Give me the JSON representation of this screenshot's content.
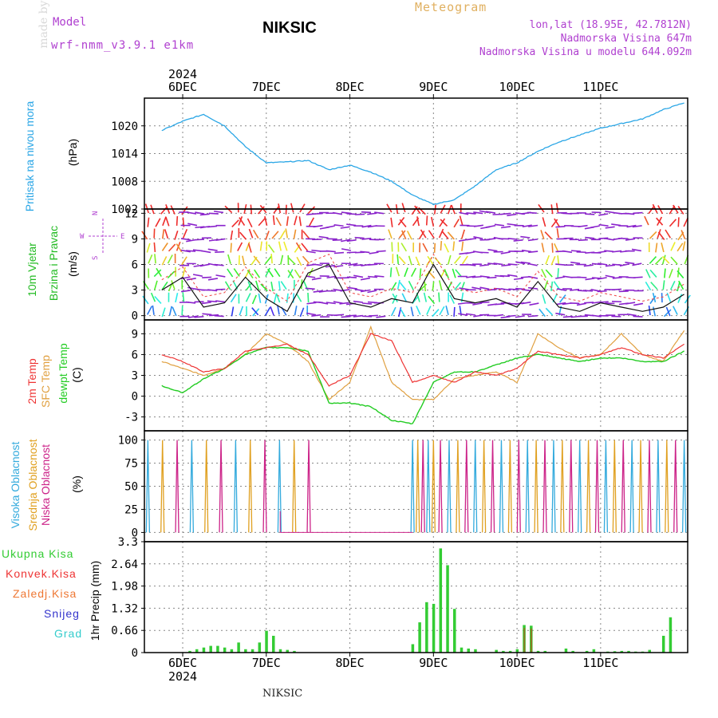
{
  "header": {
    "model_label": "Model",
    "model_name": "wrf-nmm_v3.9.1 e1km",
    "station": "NIKSIC",
    "meteogram": "Meteogram",
    "lonlat": "lon,lat (18.95E, 42.7812N)",
    "elevation": "Nadmorska Visina 647m",
    "model_elevation": "Nadmorska Visina u modelu 644.092m"
  },
  "colors": {
    "pressure": "#2aa6e6",
    "wind_label": "#22bb22",
    "temp2m": "#ee3333",
    "sfc": "#e0a040",
    "dewpt": "#22cc22",
    "high_cloud": "#33aadd",
    "mid_cloud": "#e0a020",
    "low_cloud": "#cc2288",
    "precip_total": "#33cc33",
    "precip_conv": "#ee3333",
    "precip_strat": "#ee7733",
    "snow": "#3333cc",
    "hail": "#33cccc",
    "header_purple": "#b040d0",
    "header_gold": "#e0b060",
    "grid": "#888888"
  },
  "panel_labels": {
    "pressure": "Pritisak na nivou mora",
    "pressure_unit": "(hPa)",
    "wind_1": "10m Vjetar",
    "wind_2": "Brzina i Pravac",
    "wind_unit": "(m/s)",
    "compass_n": "N",
    "compass_s": "S",
    "compass_w": "W",
    "compass_e": "E",
    "temp_1": "2m Temp",
    "temp_2": "SFC Temp",
    "temp_3": "dewpt Temp",
    "temp_unit": "(C)",
    "cloud_1": "Visoka Oblacnost",
    "cloud_2": "Srednja Oblacnost",
    "cloud_3": "Niska Oblacnost",
    "cloud_unit": "(%)",
    "precip_axis": "1hr Precip (mm)",
    "legend_total": "Ukupna Kisa",
    "legend_conv": "Konvek.Kisa",
    "legend_strat": "Zaledj.Kisa",
    "legend_snow": "Snijeg",
    "legend_hail": "Grad"
  },
  "footer": {
    "station": "NIKSIC",
    "credit": "made by Angel"
  },
  "chart_data": [
    {
      "type": "line",
      "name": "pressure",
      "x_days": [
        "6DEC",
        "7DEC",
        "8DEC",
        "9DEC",
        "10DEC",
        "11DEC"
      ],
      "year": "2024",
      "hours": [
        0,
        6,
        12,
        18,
        24,
        30,
        36,
        42,
        48,
        54,
        60,
        66,
        72,
        78,
        84,
        90,
        96,
        102,
        108,
        114,
        120,
        126,
        132,
        138,
        144,
        150
      ],
      "values": [
        1019,
        1021,
        1022.5,
        1020,
        1015.5,
        1012,
        1012.2,
        1012.5,
        1010.5,
        1011.5,
        1010,
        1008,
        1005,
        1003,
        1004,
        1007,
        1010.5,
        1012,
        1014.5,
        1016.5,
        1018,
        1019.5,
        1020.5,
        1021.5,
        1023.5,
        1025
      ],
      "yticks": [
        1002,
        1008,
        1014,
        1020
      ],
      "ylim": [
        1002,
        1026
      ]
    },
    {
      "type": "line",
      "name": "wind",
      "hours": [
        0,
        6,
        12,
        18,
        24,
        30,
        36,
        42,
        48,
        54,
        60,
        66,
        72,
        78,
        84,
        90,
        96,
        102,
        108,
        114,
        120,
        126,
        132,
        138,
        144,
        150
      ],
      "values": [
        3,
        4.5,
        1,
        1.5,
        4.5,
        2,
        0.5,
        5,
        6,
        1.5,
        1,
        2,
        1.5,
        6,
        2,
        1.5,
        2,
        1,
        4,
        1,
        0.5,
        1.5,
        1,
        0.5,
        1,
        2.5
      ],
      "yticks": [
        0,
        3,
        6,
        9,
        12
      ],
      "ylim": [
        -0.5,
        12.5
      ]
    },
    {
      "type": "line",
      "name": "temperature",
      "hours": [
        0,
        6,
        12,
        18,
        24,
        30,
        36,
        42,
        48,
        54,
        60,
        66,
        72,
        78,
        84,
        90,
        96,
        102,
        108,
        114,
        120,
        126,
        132,
        138,
        144,
        150
      ],
      "series": [
        {
          "key": "t2m",
          "values": [
            6,
            5,
            3.5,
            4,
            6.5,
            7,
            7.5,
            6,
            1.5,
            3,
            9,
            8,
            2,
            3,
            2,
            3.5,
            3,
            4,
            6.5,
            6,
            5.5,
            6,
            7,
            6,
            5.5,
            7.5
          ]
        },
        {
          "key": "tsfc",
          "values": [
            5,
            4,
            3,
            4,
            6,
            9,
            7.5,
            5,
            -0.5,
            2,
            10,
            2,
            -0.5,
            -0.5,
            2.5,
            3,
            3.5,
            2,
            9,
            7,
            5.5,
            6,
            9,
            6,
            5,
            9.5
          ]
        },
        {
          "key": "dewpt",
          "values": [
            1.5,
            0.5,
            2.5,
            4,
            6,
            7,
            7,
            6.5,
            -1,
            -1,
            -1.5,
            -3.5,
            -4,
            2,
            3.5,
            3.5,
            4.5,
            5.5,
            6,
            5.5,
            5,
            5.5,
            5.5,
            5,
            5,
            6.5
          ]
        }
      ],
      "yticks": [
        -3,
        0,
        3,
        6,
        9
      ],
      "ylim": [
        -5,
        11
      ]
    },
    {
      "type": "bar",
      "name": "cloud",
      "yticks": [
        0,
        25,
        50,
        75,
        100
      ],
      "ylim": [
        0,
        100
      ]
    },
    {
      "type": "bar",
      "name": "precipitation",
      "hours": [
        8,
        10,
        12,
        14,
        16,
        18,
        20,
        22,
        24,
        26,
        28,
        30,
        32,
        34,
        36,
        38,
        72,
        74,
        76,
        78,
        80,
        82,
        84,
        86,
        88,
        90,
        96,
        98,
        100,
        102,
        104,
        106,
        108,
        110,
        116,
        118,
        122,
        124,
        128,
        130,
        132,
        134,
        136,
        138,
        140,
        144,
        146
      ],
      "values": [
        0.05,
        0.1,
        0.15,
        0.2,
        0.2,
        0.15,
        0.1,
        0.3,
        0.1,
        0.1,
        0.3,
        0.65,
        0.5,
        0.1,
        0.08,
        0.05,
        0.25,
        0.9,
        1.5,
        1.45,
        3.1,
        2.6,
        1.3,
        0.15,
        0.12,
        0.1,
        0.08,
        0.05,
        0.05,
        0.1,
        0.82,
        0.8,
        0.05,
        0.05,
        0.12,
        0.05,
        0.05,
        0.1,
        0.03,
        0.04,
        0.05,
        0.05,
        0.03,
        0.03,
        0.08,
        0.5,
        1.05
      ],
      "yticks": [
        0,
        0.66,
        1.32,
        1.98,
        2.64,
        3.3
      ],
      "ylim": [
        0,
        3.3
      ]
    }
  ]
}
